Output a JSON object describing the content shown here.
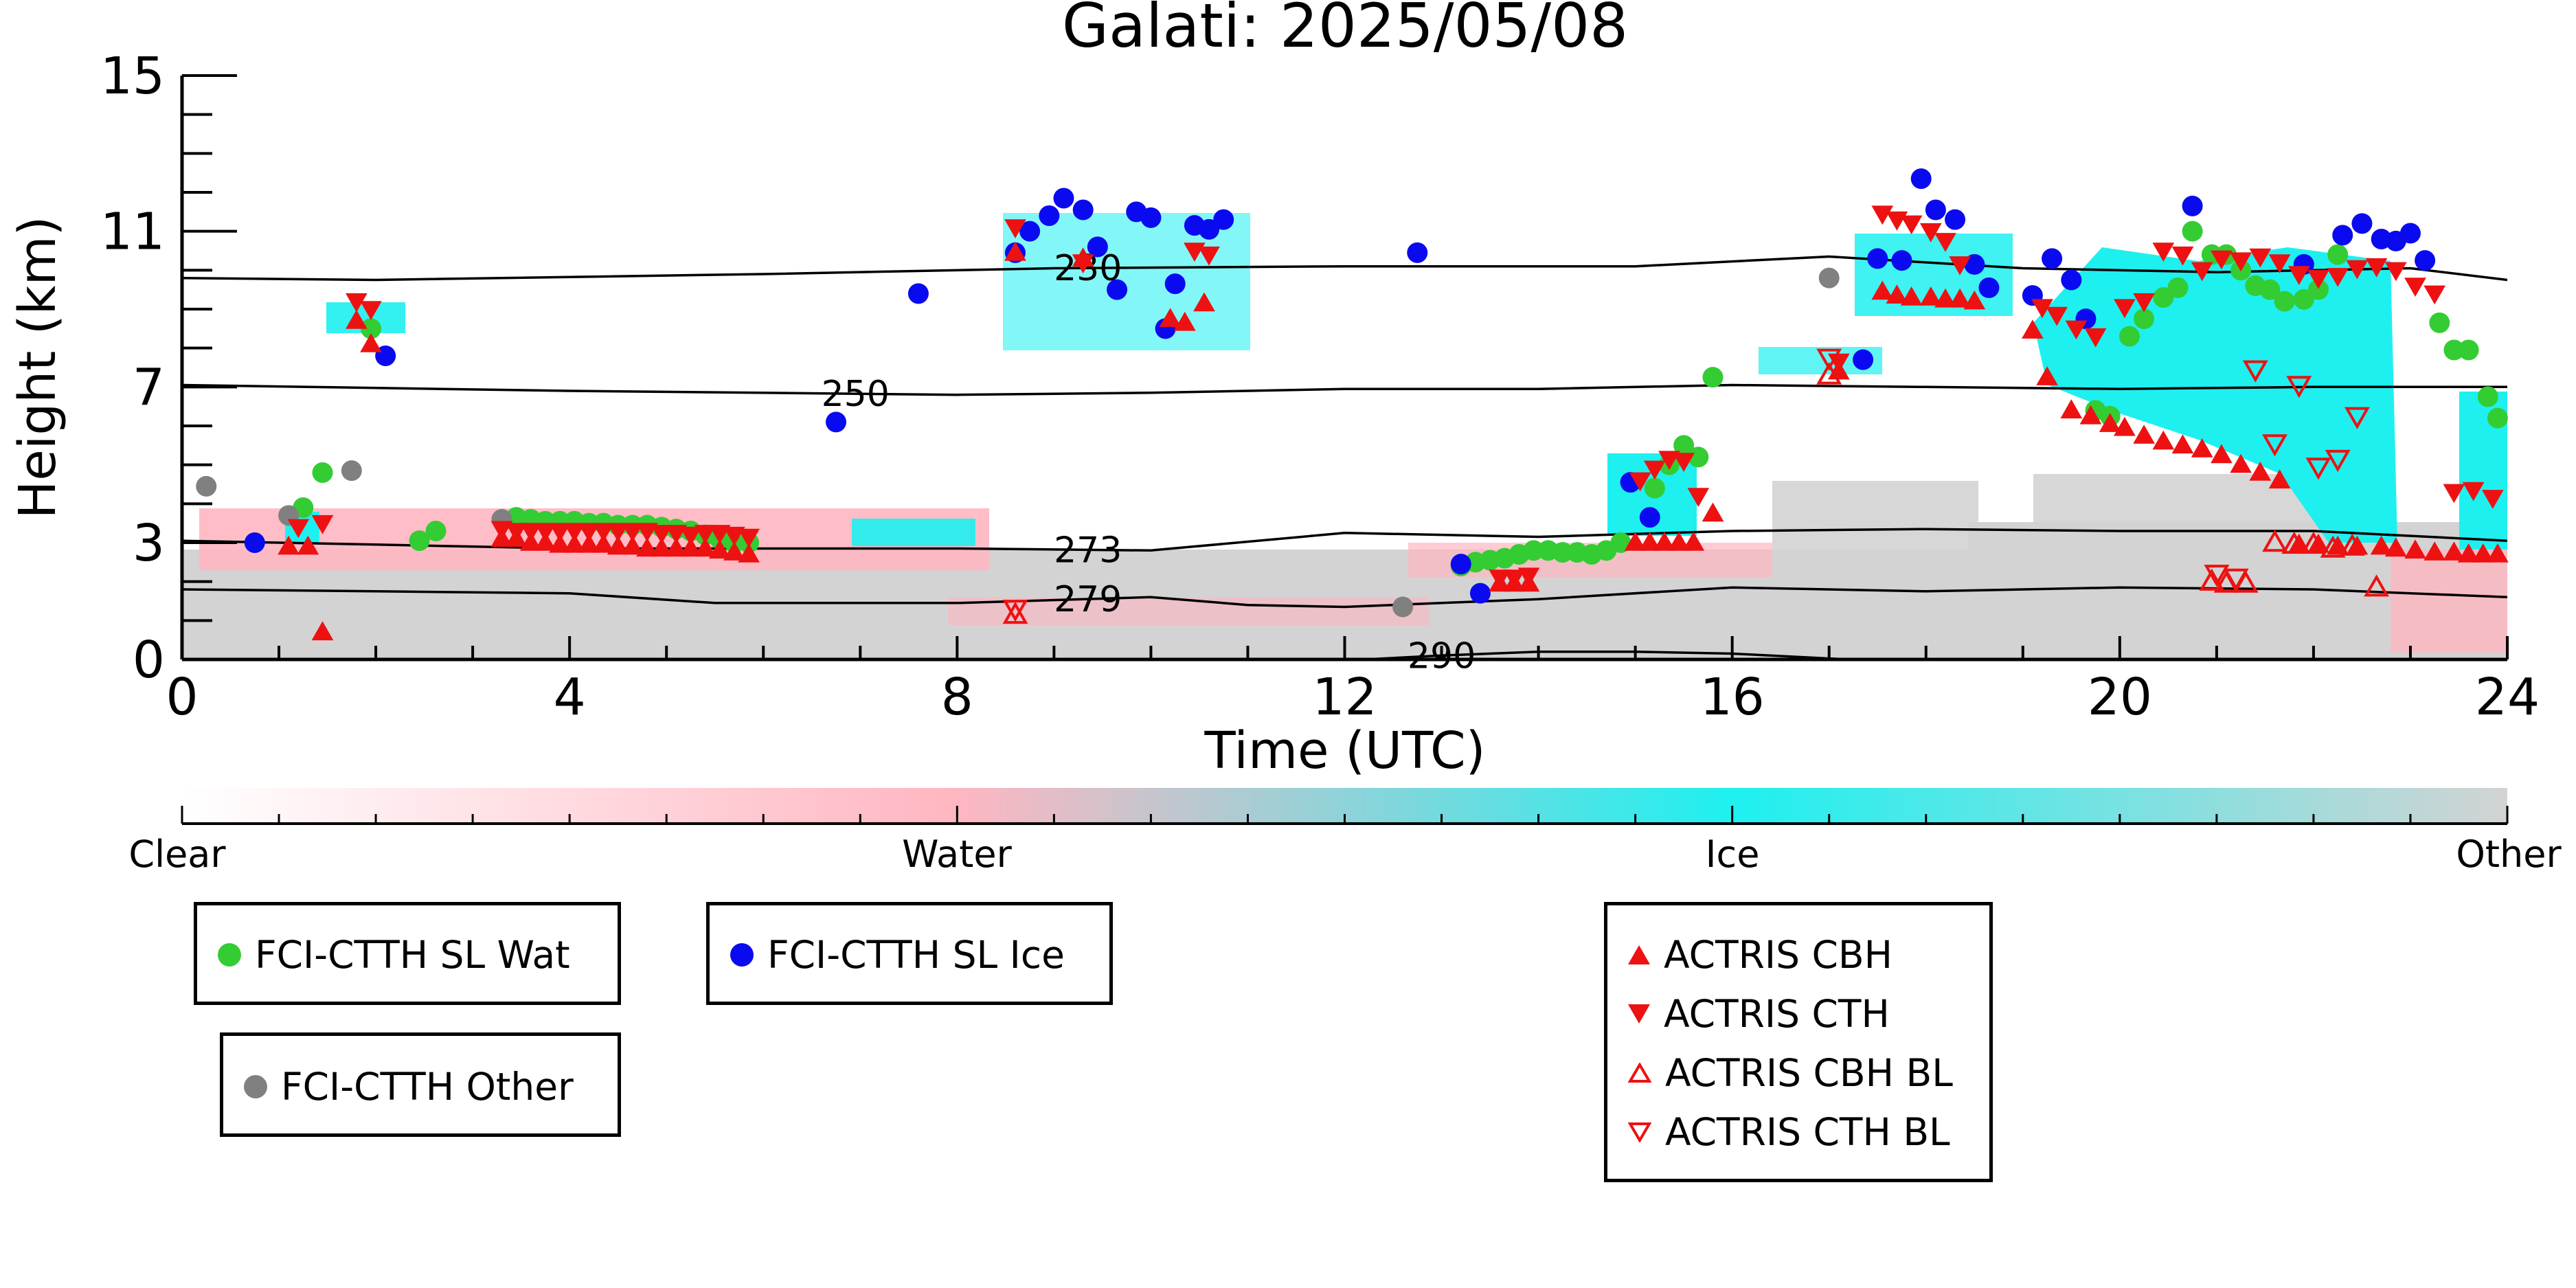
{
  "chart_data": {
    "type": "scatter",
    "title": "Galati: 2025/05/08",
    "xlabel": "Time (UTC)",
    "ylabel": "Height (km)",
    "xlim": [
      0,
      24
    ],
    "ylim": [
      0,
      15
    ],
    "xticks": [
      "0",
      "4",
      "8",
      "12",
      "16",
      "20",
      "24"
    ],
    "yticks": [
      "0",
      "3",
      "7",
      "11",
      "15"
    ],
    "isotherms": [
      {
        "label": "230",
        "x": [
          0,
          2,
          6,
          9,
          12,
          15,
          17,
          19,
          21,
          23,
          24
        ],
        "y": [
          9.8,
          9.75,
          9.9,
          10.05,
          10.1,
          10.1,
          10.35,
          10.05,
          9.95,
          10.05,
          9.75
        ]
      },
      {
        "label": "250",
        "x": [
          0,
          4,
          8,
          10,
          12,
          14,
          16,
          18,
          20,
          22,
          24
        ],
        "y": [
          7.05,
          6.9,
          6.8,
          6.85,
          6.95,
          6.95,
          7.05,
          7.0,
          6.95,
          7.0,
          7.0
        ]
      },
      {
        "label": "273",
        "x": [
          0,
          2,
          4,
          6,
          8,
          10,
          12,
          14,
          16,
          18,
          20,
          22,
          24
        ],
        "y": [
          3.05,
          2.95,
          2.85,
          2.85,
          2.85,
          2.8,
          3.25,
          3.15,
          3.3,
          3.35,
          3.3,
          3.3,
          3.05
        ]
      },
      {
        "label": "279",
        "x": [
          0,
          2,
          4,
          5.5,
          8,
          10,
          11,
          12,
          13,
          14,
          16,
          18,
          20,
          22,
          24
        ],
        "y": [
          1.8,
          1.75,
          1.7,
          1.45,
          1.45,
          1.6,
          1.4,
          1.35,
          1.45,
          1.55,
          1.85,
          1.75,
          1.85,
          1.8,
          1.6
        ]
      },
      {
        "label": "290",
        "x": [
          12.2,
          13,
          14,
          15,
          16,
          17.2
        ],
        "y": [
          0.0,
          0.1,
          0.2,
          0.2,
          0.15,
          0.0
        ]
      }
    ],
    "colorbar": {
      "labels": [
        "Clear",
        "Water",
        "Ice",
        "Other"
      ],
      "colors": [
        "#ffffff",
        "#ffb6c1",
        "#1ef0f0",
        "#d3d3d3"
      ]
    },
    "series": [
      {
        "name": "FCI-CTTH SL Wat",
        "color": "#33cc33",
        "marker": "circle",
        "x": [
          1.25,
          1.45,
          1.95,
          2.45,
          2.62,
          3.45,
          3.6,
          3.75,
          3.9,
          4.05,
          4.2,
          4.35,
          4.5,
          4.65,
          4.8,
          4.95,
          5.1,
          5.25,
          5.4,
          5.55,
          5.7,
          5.85,
          13.2,
          13.35,
          13.5,
          13.65,
          13.8,
          13.95,
          14.1,
          14.25,
          14.4,
          14.55,
          14.7,
          14.85,
          15.2,
          15.35,
          15.5,
          15.65,
          15.8,
          19.75,
          19.9,
          20.1,
          20.25,
          20.45,
          20.6,
          20.75,
          20.95,
          21.1,
          21.25,
          21.4,
          21.55,
          21.7,
          21.9,
          22.05,
          22.25,
          23.3,
          23.45,
          23.6,
          23.8,
          23.9
        ],
        "y": [
          3.9,
          4.8,
          8.5,
          3.05,
          3.3,
          3.65,
          3.6,
          3.55,
          3.55,
          3.55,
          3.5,
          3.5,
          3.45,
          3.45,
          3.45,
          3.4,
          3.35,
          3.3,
          3.2,
          3.1,
          3.0,
          3.0,
          2.4,
          2.5,
          2.55,
          2.6,
          2.7,
          2.8,
          2.8,
          2.75,
          2.75,
          2.7,
          2.8,
          3.0,
          4.4,
          5.0,
          5.5,
          5.2,
          7.25,
          6.4,
          6.25,
          8.3,
          8.75,
          9.3,
          9.55,
          11.0,
          10.4,
          10.4,
          10.0,
          9.6,
          9.5,
          9.2,
          9.25,
          9.5,
          10.4,
          8.65,
          7.95,
          7.95,
          6.75,
          6.2
        ],
        "labels": []
      },
      {
        "name": "FCI-CTTH SL Ice",
        "color": "#0a0af0",
        "marker": "circle",
        "x": [
          0.75,
          2.1,
          6.75,
          7.6,
          8.6,
          8.75,
          8.95,
          9.1,
          9.3,
          9.45,
          9.65,
          9.85,
          10.0,
          10.15,
          10.25,
          10.45,
          10.6,
          10.75,
          12.75,
          13.2,
          13.4,
          14.95,
          15.15,
          17.35,
          17.5,
          17.75,
          17.95,
          18.1,
          18.3,
          18.5,
          18.65,
          19.1,
          19.3,
          19.5,
          19.65,
          20.75,
          21.9,
          22.3,
          22.5,
          22.7,
          22.85,
          23.0,
          23.15
        ],
        "y": [
          3.0,
          7.8,
          6.1,
          9.4,
          10.45,
          11.0,
          11.4,
          11.85,
          11.55,
          10.6,
          9.5,
          11.5,
          11.35,
          8.5,
          9.65,
          11.15,
          11.05,
          11.3,
          10.45,
          2.45,
          1.7,
          4.55,
          3.65,
          7.7,
          10.3,
          10.25,
          12.35,
          11.55,
          11.3,
          10.15,
          9.55,
          9.35,
          10.3,
          9.75,
          8.75,
          11.65,
          10.15,
          10.9,
          11.2,
          10.8,
          10.75,
          10.95,
          10.25
        ],
        "labels": []
      },
      {
        "name": "FCI-CTTH Other",
        "color": "#808080",
        "marker": "circle",
        "x": [
          0.25,
          1.1,
          1.75,
          3.3,
          12.6,
          17.0
        ],
        "y": [
          4.45,
          3.7,
          4.85,
          3.6,
          1.35,
          9.8
        ],
        "labels": []
      },
      {
        "name": "ACTRIS CBH",
        "color": "#ee1111",
        "marker": "triangle-up",
        "x": [
          1.1,
          1.3,
          1.45,
          1.8,
          1.95,
          3.3,
          3.45,
          3.6,
          3.75,
          3.9,
          4.05,
          4.2,
          4.35,
          4.5,
          4.65,
          4.8,
          4.95,
          5.1,
          5.25,
          5.4,
          5.55,
          5.7,
          5.85,
          8.6,
          9.3,
          10.2,
          10.35,
          10.55,
          13.6,
          13.75,
          13.9,
          15.0,
          15.15,
          15.3,
          15.45,
          15.6,
          15.8,
          17.1,
          17.55,
          17.7,
          17.85,
          18.05,
          18.2,
          18.35,
          18.5,
          19.1,
          19.25,
          19.5,
          19.7,
          19.9,
          20.05,
          20.25,
          20.45,
          20.65,
          20.85,
          21.05,
          21.25,
          21.45,
          21.65,
          21.85,
          22.05,
          22.25,
          22.45,
          22.7,
          22.85,
          23.05,
          23.25,
          23.45,
          23.6,
          23.75,
          23.9
        ],
        "y": [
          2.9,
          2.9,
          0.7,
          8.7,
          8.1,
          3.1,
          3.1,
          3.0,
          3.0,
          2.95,
          2.95,
          2.95,
          2.95,
          2.9,
          2.9,
          2.85,
          2.85,
          2.85,
          2.85,
          2.85,
          2.8,
          2.75,
          2.7,
          10.45,
          10.3,
          8.75,
          8.65,
          9.15,
          1.95,
          1.95,
          1.95,
          3.0,
          3.0,
          3.0,
          3.0,
          3.0,
          3.75,
          7.4,
          9.45,
          9.35,
          9.3,
          9.3,
          9.25,
          9.25,
          9.2,
          8.45,
          7.25,
          6.4,
          6.25,
          6.05,
          5.95,
          5.75,
          5.6,
          5.5,
          5.4,
          5.25,
          5.0,
          4.8,
          4.6,
          2.95,
          2.95,
          2.9,
          2.9,
          2.9,
          2.85,
          2.8,
          2.75,
          2.75,
          2.7,
          2.7,
          2.7
        ],
        "labels": []
      },
      {
        "name": "ACTRIS CTH",
        "color": "#ee1111",
        "marker": "triangle-down",
        "x": [
          1.2,
          1.45,
          1.8,
          1.95,
          3.3,
          3.45,
          3.6,
          3.75,
          3.9,
          4.05,
          4.2,
          4.35,
          4.5,
          4.65,
          4.8,
          4.95,
          5.1,
          5.25,
          5.4,
          5.55,
          5.7,
          5.85,
          8.6,
          9.3,
          10.45,
          10.6,
          13.6,
          13.75,
          13.9,
          15.05,
          15.2,
          15.35,
          15.5,
          15.65,
          17.1,
          17.55,
          17.7,
          17.85,
          18.05,
          18.2,
          18.35,
          19.2,
          19.35,
          19.55,
          19.75,
          20.05,
          20.25,
          20.45,
          20.65,
          20.85,
          21.05,
          21.25,
          21.45,
          21.65,
          21.85,
          22.05,
          22.25,
          22.45,
          22.65,
          22.85,
          23.05,
          23.25,
          23.45,
          23.65,
          23.85
        ],
        "y": [
          3.4,
          3.5,
          9.2,
          9.0,
          3.35,
          3.3,
          3.3,
          3.3,
          3.3,
          3.3,
          3.3,
          3.3,
          3.3,
          3.3,
          3.3,
          3.25,
          3.25,
          3.2,
          3.25,
          3.25,
          3.2,
          3.15,
          11.1,
          10.2,
          10.5,
          10.4,
          2.1,
          2.1,
          2.15,
          4.6,
          4.9,
          5.15,
          5.1,
          4.2,
          7.65,
          11.45,
          11.3,
          11.2,
          11.0,
          10.75,
          10.15,
          9.05,
          8.85,
          8.5,
          8.3,
          9.05,
          9.2,
          10.5,
          10.4,
          10.0,
          10.3,
          10.25,
          10.35,
          10.2,
          9.9,
          9.8,
          9.85,
          10.05,
          10.1,
          10.0,
          9.6,
          9.4,
          4.3,
          4.35,
          4.15
        ],
        "labels": []
      },
      {
        "name": "ACTRIS CBH BL",
        "color": "#ee1111",
        "marker": "triangle-up-open",
        "x": [
          8.6,
          17.0,
          20.95,
          21.1,
          21.3,
          21.6,
          21.8,
          22.0,
          22.2,
          22.4,
          22.65
        ],
        "y": [
          1.15,
          7.3,
          2.0,
          1.95,
          1.95,
          3.0,
          2.95,
          2.95,
          2.85,
          2.9,
          1.85
        ],
        "labels": []
      },
      {
        "name": "ACTRIS CTH BL",
        "color": "#ee1111",
        "marker": "triangle-down-open",
        "x": [
          8.6,
          17.0,
          21.0,
          21.2,
          21.4,
          21.6,
          21.85,
          22.05,
          22.25,
          22.45
        ],
        "y": [
          1.3,
          7.75,
          2.2,
          2.1,
          7.45,
          5.55,
          7.05,
          4.95,
          5.15,
          6.25
        ],
        "labels": []
      }
    ]
  }
}
